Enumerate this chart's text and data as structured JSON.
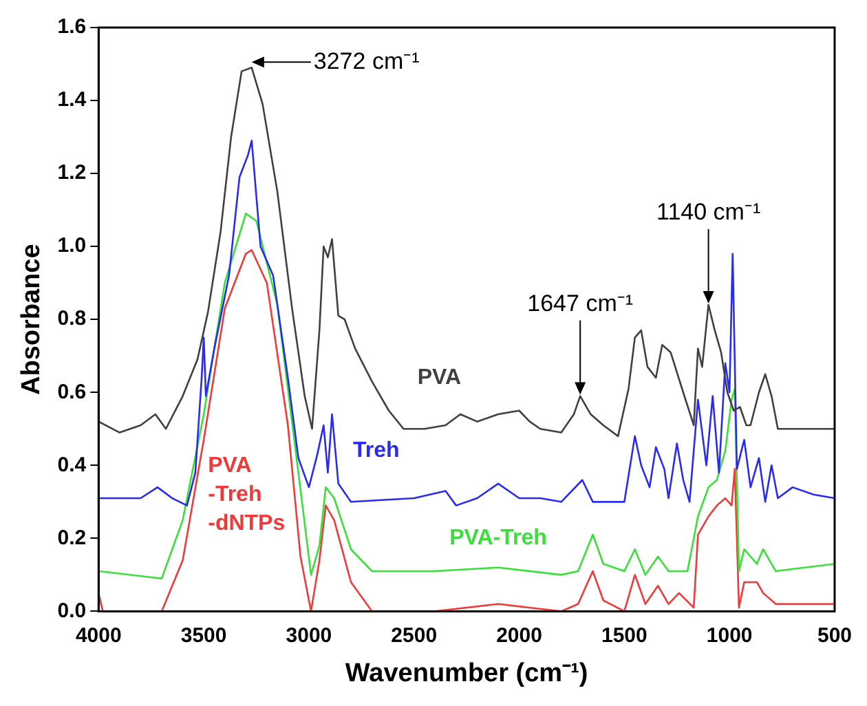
{
  "chart_data": {
    "type": "line",
    "xlabel": "Wavenumber (cm⁻¹)",
    "ylabel": "Absorbance",
    "xlim": [
      4000,
      500
    ],
    "xticks": [
      4000,
      3500,
      3000,
      2500,
      2000,
      1500,
      1000,
      500
    ],
    "ylim": [
      0,
      1.6
    ],
    "yticks": [
      {
        "value": 0,
        "label": "0.0"
      },
      {
        "value": 0.2,
        "label": "0.2"
      },
      {
        "value": 0.4,
        "label": "0.4"
      },
      {
        "value": 0.6,
        "label": "0.6"
      },
      {
        "value": 0.8,
        "label": "0.8"
      },
      {
        "value": 1,
        "label": "1.0"
      },
      {
        "value": 1.2,
        "label": "1.2"
      },
      {
        "value": 1.4,
        "label": "1.4"
      },
      {
        "value": 1.6,
        "label": "1.6"
      }
    ],
    "grid": false,
    "legend": false,
    "marker": "none",
    "line_style": "solid",
    "annotations": [
      {
        "text": "3272 cm⁻¹",
        "x": 3272,
        "y": 1.49
      },
      {
        "text": "1647 cm⁻¹",
        "x": 1710,
        "y": 0.59
      },
      {
        "text": "1140 cm⁻¹",
        "x": 1100,
        "y": 0.84
      }
    ],
    "series": [
      {
        "name": "PVA",
        "color": "#404040",
        "x": [
          4000,
          3900,
          3800,
          3730,
          3680,
          3600,
          3530,
          3480,
          3420,
          3370,
          3320,
          3272,
          3220,
          3150,
          3080,
          3020,
          2985,
          2950,
          2930,
          2910,
          2890,
          2860,
          2830,
          2780,
          2700,
          2620,
          2550,
          2450,
          2350,
          2280,
          2200,
          2100,
          2000,
          1950,
          1900,
          1800,
          1740,
          1710,
          1660,
          1600,
          1530,
          1480,
          1450,
          1420,
          1390,
          1350,
          1320,
          1280,
          1220,
          1170,
          1150,
          1130,
          1100,
          1070,
          1040,
          1010,
          980,
          950,
          920,
          900,
          860,
          830,
          800,
          770,
          650,
          500
        ],
        "values": [
          0.52,
          0.49,
          0.51,
          0.54,
          0.5,
          0.59,
          0.69,
          0.82,
          1.04,
          1.3,
          1.48,
          1.49,
          1.39,
          1.15,
          0.83,
          0.59,
          0.5,
          0.77,
          1.0,
          0.97,
          1.02,
          0.81,
          0.8,
          0.72,
          0.63,
          0.55,
          0.5,
          0.5,
          0.51,
          0.54,
          0.52,
          0.54,
          0.55,
          0.52,
          0.5,
          0.49,
          0.54,
          0.59,
          0.54,
          0.51,
          0.48,
          0.61,
          0.75,
          0.77,
          0.67,
          0.64,
          0.73,
          0.71,
          0.6,
          0.51,
          0.72,
          0.67,
          0.84,
          0.77,
          0.71,
          0.6,
          0.55,
          0.56,
          0.51,
          0.51,
          0.6,
          0.65,
          0.59,
          0.5,
          0.5,
          0.5
        ]
      },
      {
        "name": "Treh",
        "color": "#2a2af5",
        "x": [
          4000,
          3800,
          3720,
          3650,
          3580,
          3540,
          3510,
          3500,
          3490,
          3450,
          3380,
          3330,
          3290,
          3272,
          3230,
          3170,
          3100,
          3050,
          3000,
          2960,
          2930,
          2910,
          2890,
          2860,
          2800,
          2500,
          2350,
          2300,
          2200,
          2100,
          2000,
          1900,
          1800,
          1700,
          1650,
          1500,
          1450,
          1420,
          1380,
          1350,
          1310,
          1290,
          1250,
          1220,
          1190,
          1150,
          1110,
          1080,
          1050,
          1020,
          1000,
          985,
          965,
          930,
          900,
          860,
          830,
          800,
          770,
          700,
          600,
          500
        ],
        "values": [
          0.31,
          0.31,
          0.34,
          0.31,
          0.29,
          0.38,
          0.64,
          0.75,
          0.59,
          0.72,
          0.92,
          1.19,
          1.25,
          1.29,
          1.0,
          0.92,
          0.64,
          0.42,
          0.34,
          0.43,
          0.51,
          0.38,
          0.54,
          0.35,
          0.3,
          0.31,
          0.33,
          0.29,
          0.31,
          0.35,
          0.31,
          0.31,
          0.3,
          0.36,
          0.3,
          0.3,
          0.48,
          0.4,
          0.34,
          0.45,
          0.39,
          0.31,
          0.46,
          0.36,
          0.3,
          0.58,
          0.4,
          0.59,
          0.38,
          0.68,
          0.6,
          0.98,
          0.39,
          0.47,
          0.34,
          0.42,
          0.3,
          0.4,
          0.31,
          0.34,
          0.32,
          0.31
        ]
      },
      {
        "name": "PVA-Treh",
        "color": "#3ae03a",
        "x": [
          4000,
          3700,
          3600,
          3500,
          3400,
          3300,
          3250,
          3150,
          3050,
          2990,
          2950,
          2920,
          2880,
          2800,
          2700,
          2400,
          2100,
          1800,
          1720,
          1650,
          1600,
          1500,
          1450,
          1400,
          1340,
          1290,
          1200,
          1150,
          1100,
          1060,
          1020,
          990,
          975,
          955,
          930,
          870,
          840,
          780,
          500
        ],
        "values": [
          0.11,
          0.09,
          0.25,
          0.54,
          0.9,
          1.09,
          1.07,
          0.84,
          0.38,
          0.1,
          0.18,
          0.34,
          0.31,
          0.17,
          0.11,
          0.11,
          0.12,
          0.1,
          0.11,
          0.21,
          0.13,
          0.11,
          0.17,
          0.1,
          0.15,
          0.11,
          0.11,
          0.26,
          0.34,
          0.36,
          0.44,
          0.58,
          0.61,
          0.11,
          0.17,
          0.13,
          0.17,
          0.11,
          0.13
        ]
      },
      {
        "name": "PVA-Treh-dNTPs",
        "color": "#f03a3a",
        "x": [
          4000,
          3980,
          3700,
          3600,
          3500,
          3400,
          3300,
          3272,
          3200,
          3100,
          3040,
          2990,
          2950,
          2920,
          2880,
          2800,
          2700,
          2400,
          2100,
          1800,
          1720,
          1650,
          1600,
          1500,
          1450,
          1400,
          1340,
          1290,
          1240,
          1170,
          1150,
          1100,
          1060,
          1020,
          990,
          975,
          955,
          930,
          870,
          840,
          780,
          500
        ],
        "values": [
          0.05,
          0.0,
          0.0,
          0.14,
          0.47,
          0.83,
          0.98,
          0.99,
          0.9,
          0.51,
          0.15,
          0.0,
          0.14,
          0.29,
          0.25,
          0.08,
          0.0,
          0.0,
          0.02,
          0.0,
          0.02,
          0.11,
          0.03,
          0.0,
          0.1,
          0.02,
          0.07,
          0.02,
          0.05,
          0.01,
          0.21,
          0.26,
          0.29,
          0.31,
          0.29,
          0.39,
          0.01,
          0.08,
          0.08,
          0.05,
          0.02,
          0.02
        ]
      }
    ]
  }
}
